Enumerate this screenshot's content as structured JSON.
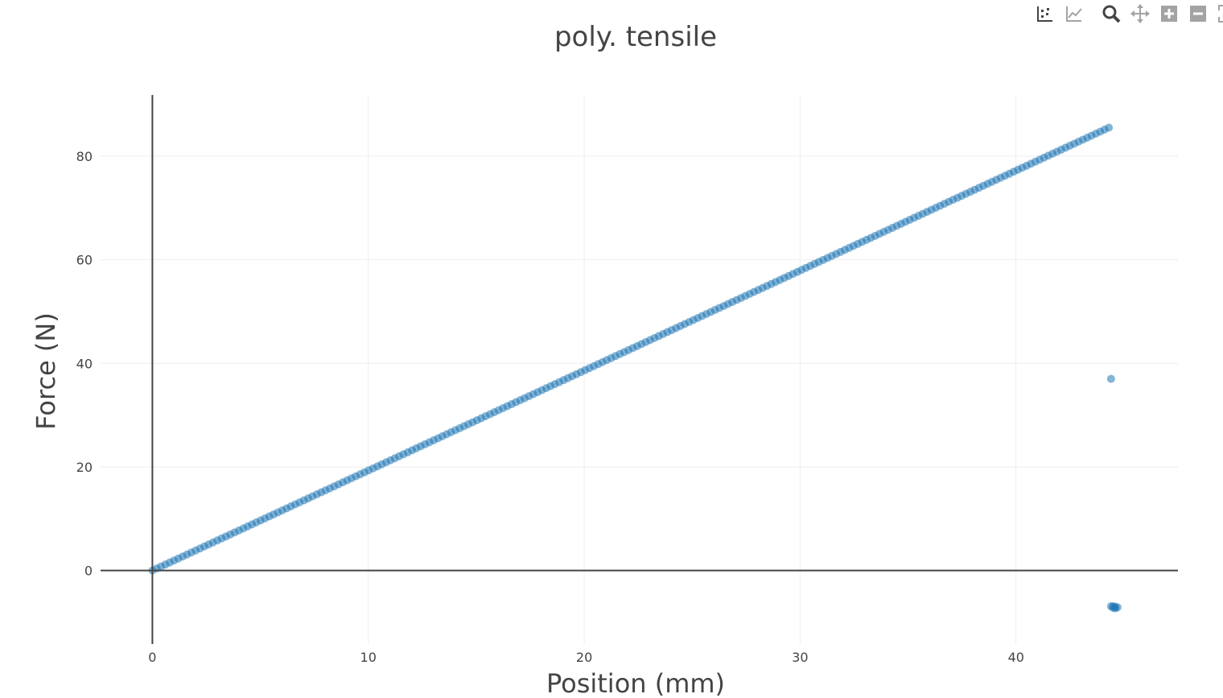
{
  "modebar": {
    "buttons": [
      {
        "name": "compare-data-icon"
      },
      {
        "name": "closest-data-icon"
      },
      {
        "name": "zoom-icon"
      },
      {
        "name": "pan-icon"
      },
      {
        "name": "zoom-in-icon"
      },
      {
        "name": "zoom-out-icon"
      },
      {
        "name": "autoscale-icon"
      }
    ],
    "colors": {
      "active": "#444444",
      "inactive": "#a3a3a3"
    }
  },
  "chart_data": {
    "type": "scatter",
    "title": "poly. tensile",
    "xlabel": "Position (mm)",
    "ylabel": "Force (N)",
    "xlim": [
      -2.4,
      47.5
    ],
    "ylim": [
      -14.2,
      91.8
    ],
    "xticks": [
      0,
      10,
      20,
      30,
      40
    ],
    "yticks": [
      0,
      20,
      40,
      60,
      80
    ],
    "grid": true,
    "marker_color": "#1f77b4",
    "series": [
      {
        "line_start": [
          0,
          0
        ],
        "line_end": [
          44.3,
          85.5
        ],
        "step": 0.2,
        "outliers": [
          [
            44.4,
            37.0
          ],
          [
            44.4,
            -6.9
          ],
          [
            44.5,
            -6.9
          ],
          [
            44.6,
            -7.0
          ],
          [
            44.5,
            -7.2
          ],
          [
            44.7,
            -7.1
          ],
          [
            44.6,
            -7.3
          ]
        ]
      }
    ]
  }
}
